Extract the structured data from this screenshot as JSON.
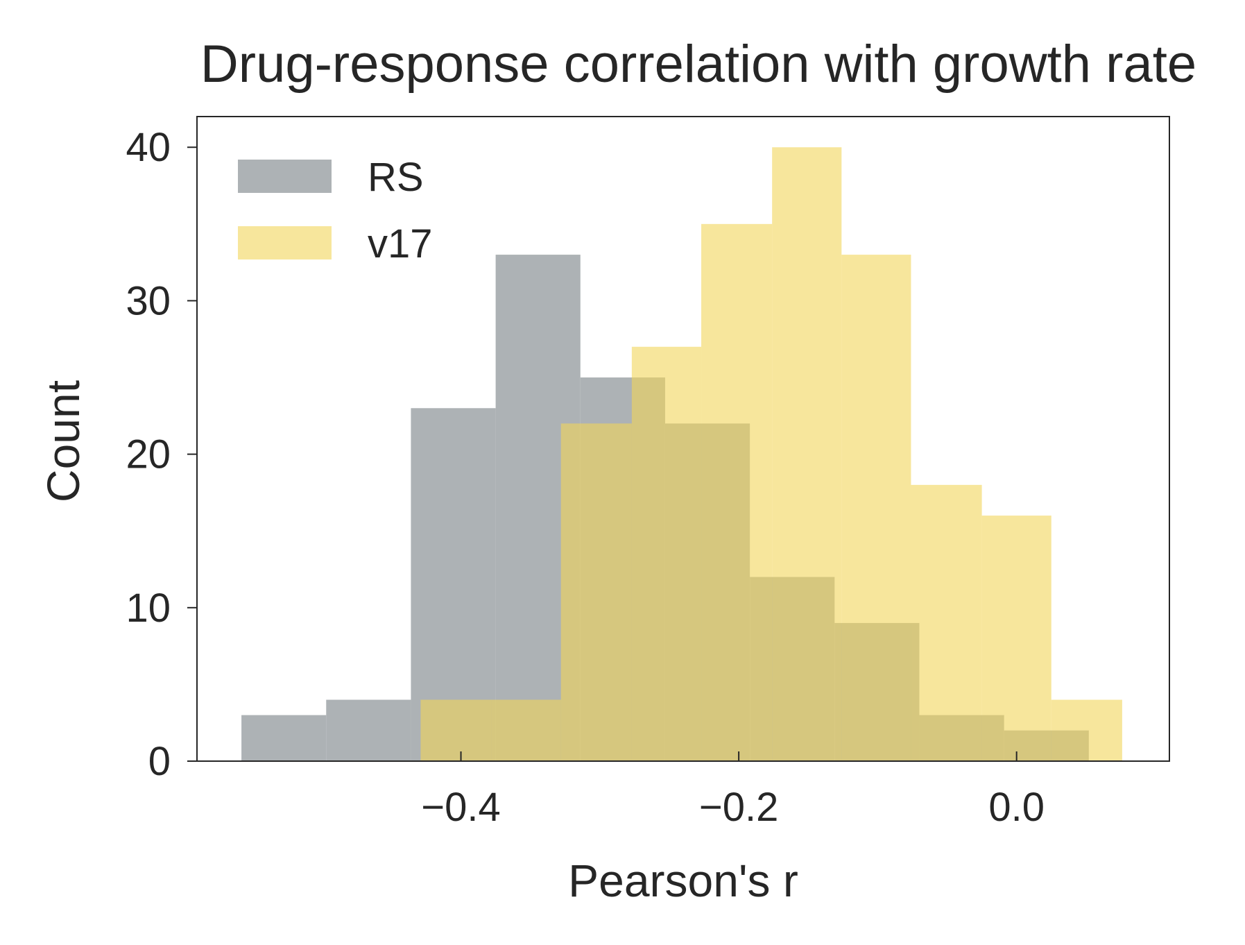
{
  "chart_data": {
    "type": "histogram",
    "title": "Drug-response correlation with growth rate",
    "xlabel": "Pearson's r",
    "ylabel": "Count",
    "xlim": [
      -0.59,
      0.11
    ],
    "ylim": [
      0,
      42
    ],
    "x_ticks": [
      -0.4,
      -0.2,
      0.0
    ],
    "x_tick_labels": [
      "−0.4",
      "−0.2",
      "0.0"
    ],
    "y_ticks": [
      0,
      10,
      20,
      30,
      40
    ],
    "y_tick_labels": [
      "0",
      "10",
      "20",
      "30",
      "40"
    ],
    "grid": false,
    "legend_position": "top-left",
    "series": [
      {
        "name": "RS",
        "color": "#a9aeb1",
        "opacity": 0.95,
        "bin_edges": [
          -0.558,
          -0.497,
          -0.436,
          -0.375,
          -0.314,
          -0.253,
          -0.192,
          -0.131,
          -0.07,
          -0.009,
          0.052
        ],
        "counts": [
          3,
          4,
          23,
          33,
          25,
          22,
          12,
          9,
          3,
          2
        ]
      },
      {
        "name": "v17",
        "color": "#f2d65a",
        "opacity": 0.6,
        "bin_edges": [
          -0.429,
          -0.378,
          -0.328,
          -0.277,
          -0.227,
          -0.176,
          -0.126,
          -0.076,
          -0.025,
          0.025,
          0.076
        ],
        "counts": [
          4,
          4,
          22,
          27,
          35,
          40,
          33,
          18,
          16,
          4
        ]
      }
    ]
  }
}
